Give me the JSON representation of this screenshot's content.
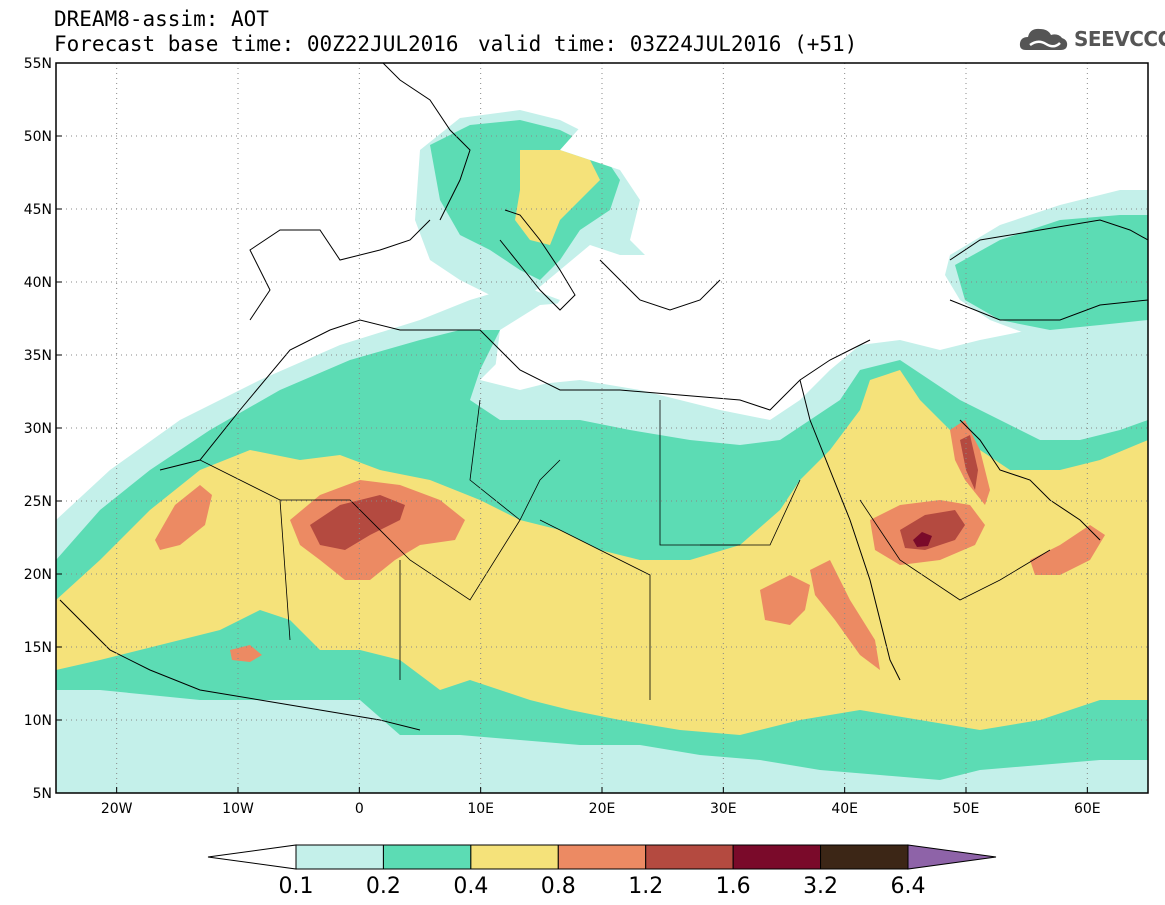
{
  "header": {
    "title_line1": "DREAM8-assim: AOT",
    "title_line2": "Forecast base time: 00Z22JUL2016",
    "valid_time": "valid time: 03Z24JUL2016 (+51)"
  },
  "logo": {
    "text": "SEEVCCC",
    "icon": "cloud-icon"
  },
  "map": {
    "lon_range": [
      -25,
      65
    ],
    "lat_range": [
      5,
      55
    ],
    "lon_ticks": [
      "20W",
      "10W",
      "0",
      "10E",
      "20E",
      "30E",
      "40E",
      "50E",
      "60E"
    ],
    "lat_ticks": [
      "5N",
      "10N",
      "15N",
      "20N",
      "25N",
      "30N",
      "35N",
      "40N",
      "45N",
      "50N",
      "55N"
    ],
    "grid": "dotted"
  },
  "colorbar": {
    "levels": [
      "0.1",
      "0.2",
      "0.4",
      "0.8",
      "1.2",
      "1.6",
      "3.2",
      "6.4"
    ],
    "colors": [
      "#ffffff",
      "#c4f0ea",
      "#5cdcb4",
      "#f5e27a",
      "#ec8a63",
      "#b44a40",
      "#7a0a2a",
      "#3c2616",
      "#8e63a8"
    ]
  }
}
